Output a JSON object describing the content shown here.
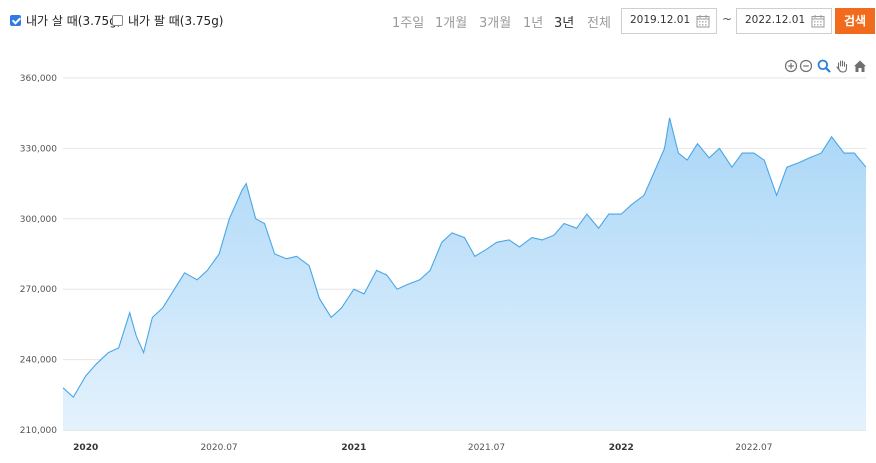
{
  "controls": {
    "buy_label": "내가 살 때(3.75g)",
    "buy_checked": true,
    "sell_label": "내가 팔 때(3.75g)",
    "sell_checked": false,
    "periods": [
      "1주일",
      "1개월",
      "3개월",
      "1년",
      "3년",
      "전체"
    ],
    "active_period": "3년",
    "start_date": "2019.12.01",
    "tilde": "~",
    "end_date": "2022.12.01",
    "search_label": "검색",
    "accent_color": "#f26b1d"
  },
  "tools": [
    "zoom-in-icon",
    "zoom-out-icon",
    "zoom-select-icon",
    "pan-hand-icon",
    "home-icon"
  ],
  "chart_data": {
    "type": "area",
    "series_color": "#4aa6e6",
    "fill_color_top": "#a9d6f7",
    "fill_color_bottom": "#e4f2fd",
    "ylim": [
      210000,
      360000
    ],
    "y_ticks": [
      {
        "value": 210000,
        "label": "210,000"
      },
      {
        "value": 240000,
        "label": "240,000"
      },
      {
        "value": 270000,
        "label": "270,000"
      },
      {
        "value": 300000,
        "label": "300,000"
      },
      {
        "value": 330000,
        "label": "330,000"
      },
      {
        "value": 360000,
        "label": "360,000"
      }
    ],
    "x_range": [
      "2019-12-01",
      "2022-12-01"
    ],
    "x_ticks": [
      {
        "date": "2020-01-01",
        "label": "2020",
        "bold": true
      },
      {
        "date": "2020-07-01",
        "label": "2020.07",
        "bold": false
      },
      {
        "date": "2021-01-01",
        "label": "2021",
        "bold": true
      },
      {
        "date": "2021-07-01",
        "label": "2021.07",
        "bold": false
      },
      {
        "date": "2022-01-01",
        "label": "2022",
        "bold": true
      },
      {
        "date": "2022-07-01",
        "label": "2022.07",
        "bold": false
      }
    ],
    "x": [
      "2019-12-01",
      "2019-12-15",
      "2020-01-01",
      "2020-01-15",
      "2020-02-01",
      "2020-02-15",
      "2020-03-01",
      "2020-03-10",
      "2020-03-20",
      "2020-04-01",
      "2020-04-15",
      "2020-05-01",
      "2020-05-15",
      "2020-06-01",
      "2020-06-15",
      "2020-07-01",
      "2020-07-15",
      "2020-08-01",
      "2020-08-07",
      "2020-08-20",
      "2020-09-01",
      "2020-09-15",
      "2020-10-01",
      "2020-10-15",
      "2020-11-01",
      "2020-11-15",
      "2020-12-01",
      "2020-12-15",
      "2021-01-01",
      "2021-01-15",
      "2021-02-01",
      "2021-02-15",
      "2021-03-01",
      "2021-03-15",
      "2021-04-01",
      "2021-04-15",
      "2021-05-01",
      "2021-05-15",
      "2021-06-01",
      "2021-06-15",
      "2021-07-01",
      "2021-07-15",
      "2021-08-01",
      "2021-08-15",
      "2021-09-01",
      "2021-09-15",
      "2021-10-01",
      "2021-10-15",
      "2021-11-01",
      "2021-11-15",
      "2021-12-01",
      "2021-12-15",
      "2022-01-01",
      "2022-01-15",
      "2022-02-01",
      "2022-02-15",
      "2022-03-01",
      "2022-03-08",
      "2022-03-20",
      "2022-04-01",
      "2022-04-15",
      "2022-05-01",
      "2022-05-15",
      "2022-06-01",
      "2022-06-15",
      "2022-07-01",
      "2022-07-15",
      "2022-08-01",
      "2022-08-15",
      "2022-09-01",
      "2022-09-15",
      "2022-10-01",
      "2022-10-15",
      "2022-11-01",
      "2022-11-15",
      "2022-12-01"
    ],
    "values": [
      228000,
      224000,
      233000,
      238000,
      243000,
      245000,
      260000,
      250000,
      243000,
      258000,
      262000,
      270000,
      277000,
      274000,
      278000,
      285000,
      300000,
      312000,
      315000,
      300000,
      298000,
      285000,
      283000,
      284000,
      280000,
      266000,
      258000,
      262000,
      270000,
      268000,
      278000,
      276000,
      270000,
      272000,
      274000,
      278000,
      290000,
      294000,
      292000,
      284000,
      287000,
      290000,
      291000,
      288000,
      292000,
      291000,
      293000,
      298000,
      296000,
      302000,
      296000,
      302000,
      302000,
      306000,
      310000,
      320000,
      330000,
      343000,
      328000,
      325000,
      332000,
      326000,
      330000,
      322000,
      328000,
      328000,
      325000,
      310000,
      322000,
      324000,
      326000,
      328000,
      335000,
      328000,
      328000,
      322000
    ]
  }
}
